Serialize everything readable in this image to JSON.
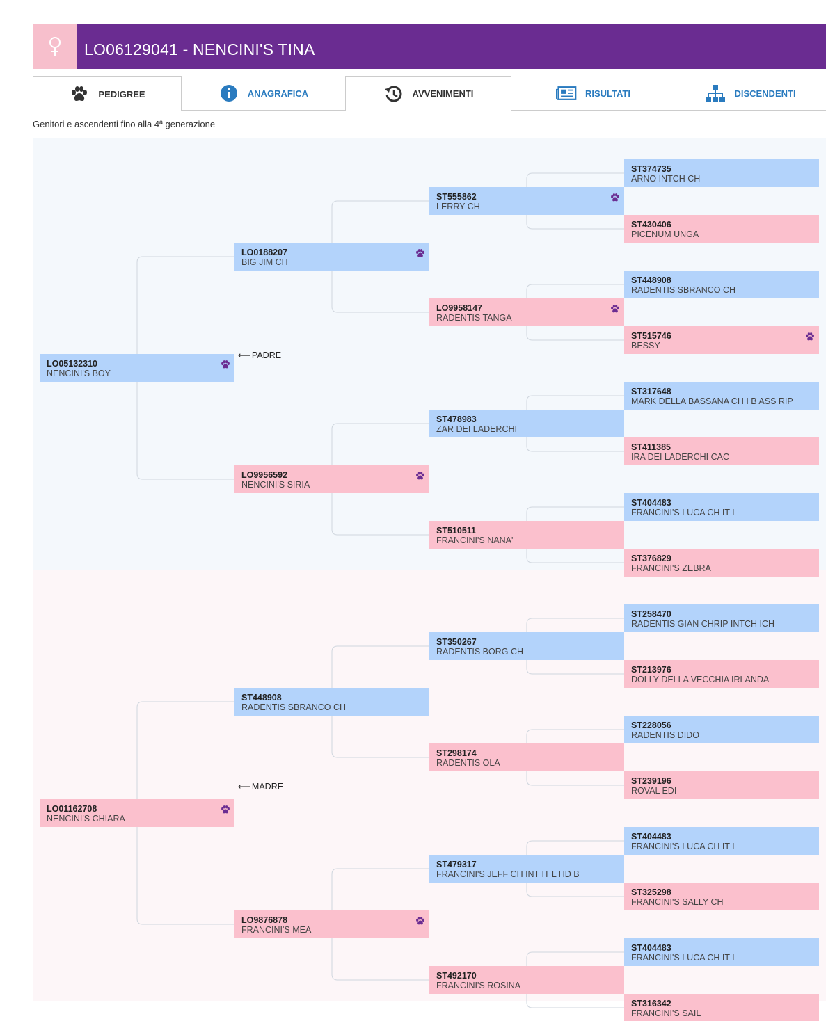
{
  "header": {
    "title": "LO06129041 - NENCINI'S TINA",
    "sex_icon": "female-symbol-icon",
    "accent": "#6a2c91",
    "sex_color": "#f7bfcc"
  },
  "tabs": [
    {
      "label": "PEDIGREE",
      "icon": "paw-icon"
    },
    {
      "label": "ANAGRAFICA",
      "icon": "info-icon"
    },
    {
      "label": "AVVENIMENTI",
      "icon": "history-icon"
    },
    {
      "label": "RISULTATI",
      "icon": "newspaper-icon"
    },
    {
      "label": "DISCENDENTI",
      "icon": "sitemap-icon"
    }
  ],
  "subtitle": "Genitori e ascendenti fino alla 4ª generazione",
  "relations": {
    "father": "PADRE",
    "mother": "MADRE"
  },
  "colors": {
    "male": "#b3d3fb",
    "female": "#fbc0cd",
    "paw": "#6a2c91"
  },
  "pedigree": {
    "gen1": [
      {
        "code": "LO05132310",
        "name": "NENCINI'S BOY",
        "sex": "male",
        "paw": true
      },
      {
        "code": "LO01162708",
        "name": "NENCINI'S CHIARA",
        "sex": "female",
        "paw": true
      }
    ],
    "gen2": [
      {
        "code": "LO0188207",
        "name": "BIG JIM CH",
        "sex": "male",
        "paw": true
      },
      {
        "code": "LO9956592",
        "name": "NENCINI'S SIRIA",
        "sex": "female",
        "paw": true
      },
      {
        "code": "ST448908",
        "name": "RADENTIS SBRANCO CH",
        "sex": "male",
        "paw": false
      },
      {
        "code": "LO9876878",
        "name": "FRANCINI'S MEA",
        "sex": "female",
        "paw": true
      }
    ],
    "gen3": [
      {
        "code": "ST555862",
        "name": "LERRY CH",
        "sex": "male",
        "paw": true
      },
      {
        "code": "LO9958147",
        "name": "RADENTIS TANGA",
        "sex": "female",
        "paw": true
      },
      {
        "code": "ST478983",
        "name": "ZAR DEI LADERCHI",
        "sex": "male",
        "paw": false
      },
      {
        "code": "ST510511",
        "name": "FRANCINI'S NANA'",
        "sex": "female",
        "paw": false
      },
      {
        "code": "ST350267",
        "name": "RADENTIS BORG CH",
        "sex": "male",
        "paw": false
      },
      {
        "code": "ST298174",
        "name": "RADENTIS OLA",
        "sex": "female",
        "paw": false
      },
      {
        "code": "ST479317",
        "name": "FRANCINI'S JEFF CH INT IT L HD B",
        "sex": "male",
        "paw": false
      },
      {
        "code": "ST492170",
        "name": "FRANCINI'S ROSINA",
        "sex": "female",
        "paw": false
      }
    ],
    "gen4": [
      {
        "code": "ST374735",
        "name": "ARNO INTCH CH",
        "sex": "male",
        "paw": false
      },
      {
        "code": "ST430406",
        "name": "PICENUM UNGA",
        "sex": "female",
        "paw": false
      },
      {
        "code": "ST448908",
        "name": "RADENTIS SBRANCO CH",
        "sex": "male",
        "paw": false
      },
      {
        "code": "ST515746",
        "name": "BESSY",
        "sex": "female",
        "paw": true
      },
      {
        "code": "ST317648",
        "name": "MARK DELLA BASSANA CH I B ASS RIP",
        "sex": "male",
        "paw": false
      },
      {
        "code": "ST411385",
        "name": "IRA DEI LADERCHI CAC",
        "sex": "female",
        "paw": false
      },
      {
        "code": "ST404483",
        "name": "FRANCINI'S LUCA CH IT L",
        "sex": "male",
        "paw": false
      },
      {
        "code": "ST376829",
        "name": "FRANCINI'S ZEBRA",
        "sex": "female",
        "paw": false
      },
      {
        "code": "ST258470",
        "name": "RADENTIS GIAN CHRIP INTCH ICH",
        "sex": "male",
        "paw": false
      },
      {
        "code": "ST213976",
        "name": "DOLLY DELLA VECCHIA IRLANDA",
        "sex": "female",
        "paw": false
      },
      {
        "code": "ST228056",
        "name": "RADENTIS DIDO",
        "sex": "male",
        "paw": false
      },
      {
        "code": "ST239196",
        "name": "ROVAL EDI",
        "sex": "female",
        "paw": false
      },
      {
        "code": "ST404483",
        "name": "FRANCINI'S LUCA CH IT L",
        "sex": "male",
        "paw": false
      },
      {
        "code": "ST325298",
        "name": "FRANCINI'S SALLY CH",
        "sex": "female",
        "paw": false
      },
      {
        "code": "ST404483",
        "name": "FRANCINI'S LUCA CH IT L",
        "sex": "male",
        "paw": false
      },
      {
        "code": "ST316342",
        "name": "FRANCINI'S SAIL",
        "sex": "female",
        "paw": false
      }
    ]
  }
}
